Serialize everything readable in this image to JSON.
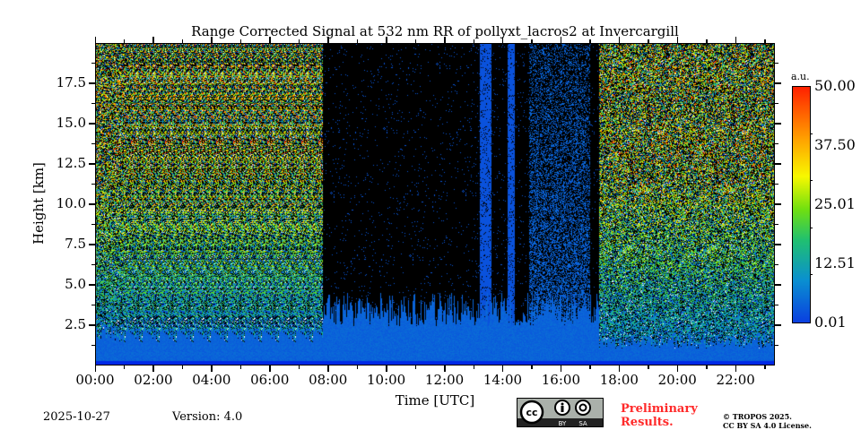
{
  "chart_data": {
    "type": "heatmap",
    "title": "Range Corrected Signal at 532 nm RR of pollyxt_lacros2 at Invercargill",
    "xlabel": "Time [UTC]",
    "ylabel": "Height [km]",
    "xlim_hours": [
      0,
      23.35
    ],
    "ylim_km": [
      0,
      20
    ],
    "xticks": [
      "00:00",
      "02:00",
      "04:00",
      "06:00",
      "08:00",
      "10:00",
      "12:00",
      "14:00",
      "16:00",
      "18:00",
      "20:00",
      "22:00"
    ],
    "yticks": [
      "2.5",
      "5.0",
      "7.5",
      "10.0",
      "12.5",
      "15.0",
      "17.5"
    ],
    "ytick_values": [
      2.5,
      5,
      7.5,
      10,
      12.5,
      15,
      17.5
    ],
    "colorbar": {
      "unit": "a.u.",
      "labels": [
        "50.00",
        "37.50",
        "25.01",
        "12.51",
        "0.01"
      ],
      "min": 0.01,
      "max": 50
    },
    "regimes": [
      {
        "from_h": 0,
        "to_h": 7.8,
        "type": "noisy",
        "bl_top_km": 2.0
      },
      {
        "from_h": 7.8,
        "to_h": 17.3,
        "type": "clear",
        "bl_top_km": 3.5
      },
      {
        "from_h": 17.3,
        "to_h": 23.35,
        "type": "noisy",
        "bl_top_km": 1.5
      }
    ],
    "clouds": [
      {
        "from_h": 13.2,
        "to_h": 13.6
      },
      {
        "from_h": 14.15,
        "to_h": 14.4
      },
      {
        "from_h": 14.9,
        "to_h": 17.0
      }
    ]
  },
  "footer": {
    "date": "2025-10-27",
    "version": "Version: 4.0",
    "cc": "CC",
    "by": "BY",
    "sa": "SA",
    "prelim": [
      "Preliminary",
      "Results."
    ],
    "copyright": [
      "© TROPOS 2025.",
      "CC BY SA 4.0 License."
    ]
  }
}
